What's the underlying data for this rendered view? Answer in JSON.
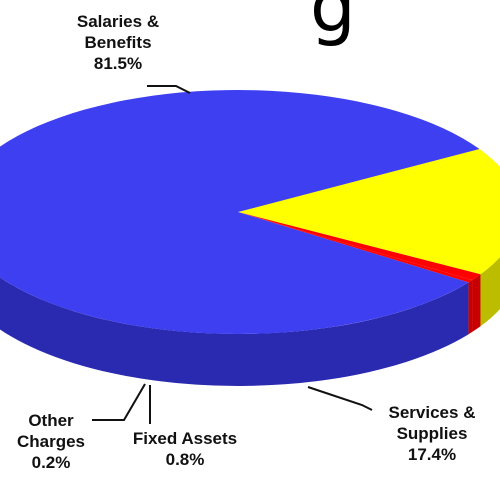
{
  "chart_data": {
    "type": "pie",
    "style": "3d",
    "title_fragment": "g",
    "slices": [
      {
        "label_lines": [
          "Salaries &",
          "Benefits"
        ],
        "value_text": "81.5%",
        "value": 81.5,
        "color": "#3f3ff2"
      },
      {
        "label_lines": [
          "Services &",
          "Supplies"
        ],
        "value_text": "17.4%",
        "value": 17.4,
        "color": "#ffff00"
      },
      {
        "label_lines": [
          "Fixed Assets"
        ],
        "value_text": "0.8%",
        "value": 0.8,
        "color": "#ff0000"
      },
      {
        "label_lines": [
          "Other",
          "Charges"
        ],
        "value_text": "0.2%",
        "value": 0.2,
        "color": "#ff0000"
      }
    ],
    "side_colors": {
      "Salaries & Benefits": "#2a2ab0",
      "Services & Supplies": "#bdbd00",
      "Fixed Assets": "#c80000"
    }
  }
}
